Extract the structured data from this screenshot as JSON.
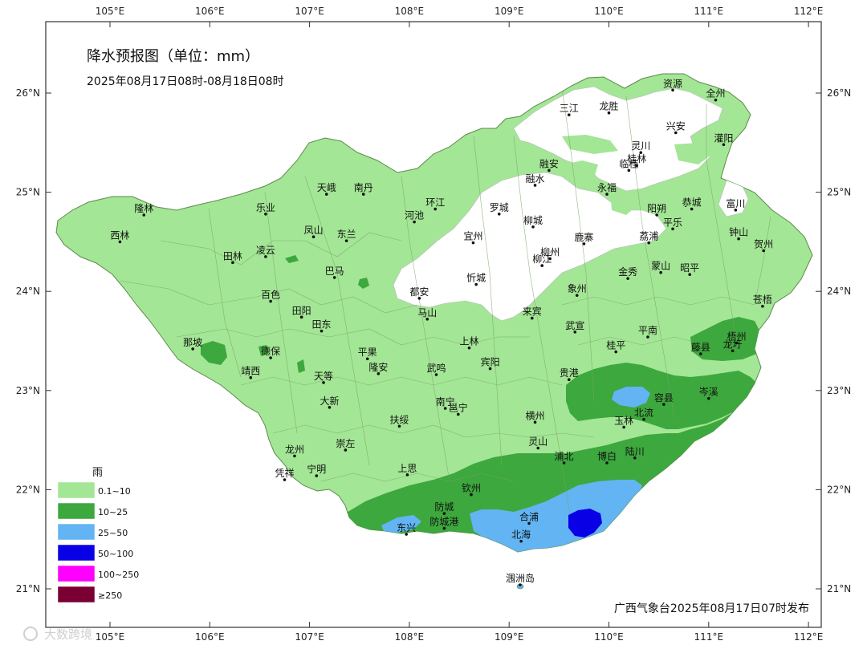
{
  "title": "降水预报图（单位：mm）",
  "subtitle": "2025年08月17日08时-08月18日08时",
  "publisher": "广西气象台2025年08月17日07时发布",
  "watermark": "大数跨境",
  "axes": {
    "top": [
      "105°E",
      "106°E",
      "107°E",
      "108°E",
      "109°E",
      "110°E",
      "111°E",
      "112°E"
    ],
    "bottom": [
      "105°E",
      "106°E",
      "107°E",
      "108°E",
      "109°E",
      "110°E",
      "111°E",
      "112°E"
    ],
    "left": [
      "26°N",
      "25°N",
      "24°N",
      "23°N",
      "22°N",
      "21°N"
    ],
    "right": [
      "26°N",
      "25°N",
      "24°N",
      "23°N",
      "22°N",
      "21°N"
    ]
  },
  "legend": {
    "title": "雨",
    "items": [
      {
        "label": "0.1~10",
        "color": "#a3e695"
      },
      {
        "label": "10~25",
        "color": "#3da83d"
      },
      {
        "label": "25~50",
        "color": "#62b4f3"
      },
      {
        "label": "50~100",
        "color": "#0a00e6"
      },
      {
        "label": "100~250",
        "color": "#ff00ff"
      },
      {
        "label": "≥250",
        "color": "#7a0033"
      }
    ]
  },
  "cities": [
    {
      "name": "资源",
      "lon": 110.64,
      "lat": 26.03
    },
    {
      "name": "全州",
      "lon": 111.07,
      "lat": 25.93
    },
    {
      "name": "三江",
      "lon": 109.6,
      "lat": 25.78
    },
    {
      "name": "龙胜",
      "lon": 110.0,
      "lat": 25.8
    },
    {
      "name": "兴安",
      "lon": 110.67,
      "lat": 25.6
    },
    {
      "name": "灌阳",
      "lon": 111.15,
      "lat": 25.48
    },
    {
      "name": "灵川",
      "lon": 110.32,
      "lat": 25.4
    },
    {
      "name": "桂林",
      "lon": 110.28,
      "lat": 25.27
    },
    {
      "name": "临桂",
      "lon": 110.2,
      "lat": 25.22
    },
    {
      "name": "融安",
      "lon": 109.4,
      "lat": 25.22
    },
    {
      "name": "融水",
      "lon": 109.26,
      "lat": 25.07
    },
    {
      "name": "永福",
      "lon": 109.98,
      "lat": 24.98
    },
    {
      "name": "天峨",
      "lon": 107.17,
      "lat": 24.98
    },
    {
      "name": "南丹",
      "lon": 107.54,
      "lat": 24.98
    },
    {
      "name": "恭城",
      "lon": 110.83,
      "lat": 24.83
    },
    {
      "name": "富川",
      "lon": 111.27,
      "lat": 24.82
    },
    {
      "name": "阳朔",
      "lon": 110.48,
      "lat": 24.77
    },
    {
      "name": "隆林",
      "lon": 105.34,
      "lat": 24.77
    },
    {
      "name": "乐业",
      "lon": 106.56,
      "lat": 24.78
    },
    {
      "name": "环江",
      "lon": 108.26,
      "lat": 24.83
    },
    {
      "name": "河池",
      "lon": 108.05,
      "lat": 24.7
    },
    {
      "name": "罗城",
      "lon": 108.9,
      "lat": 24.78
    },
    {
      "name": "平乐",
      "lon": 110.64,
      "lat": 24.63
    },
    {
      "name": "柳城",
      "lon": 109.24,
      "lat": 24.65
    },
    {
      "name": "钟山",
      "lon": 111.3,
      "lat": 24.53
    },
    {
      "name": "西林",
      "lon": 105.1,
      "lat": 24.5
    },
    {
      "name": "凤山",
      "lon": 107.04,
      "lat": 24.55
    },
    {
      "name": "东兰",
      "lon": 107.37,
      "lat": 24.51
    },
    {
      "name": "宜州",
      "lon": 108.64,
      "lat": 24.49
    },
    {
      "name": "鹿寨",
      "lon": 109.75,
      "lat": 24.48
    },
    {
      "name": "荔浦",
      "lon": 110.4,
      "lat": 24.49
    },
    {
      "name": "贺州",
      "lon": 111.55,
      "lat": 24.41
    },
    {
      "name": "柳州",
      "lon": 109.41,
      "lat": 24.33
    },
    {
      "name": "田林",
      "lon": 106.23,
      "lat": 24.29
    },
    {
      "name": "凌云",
      "lon": 106.56,
      "lat": 24.35
    },
    {
      "name": "柳江",
      "lon": 109.33,
      "lat": 24.26
    },
    {
      "name": "巴马",
      "lon": 107.25,
      "lat": 24.14
    },
    {
      "name": "金秀",
      "lon": 110.19,
      "lat": 24.13
    },
    {
      "name": "蒙山",
      "lon": 110.52,
      "lat": 24.19
    },
    {
      "name": "昭平",
      "lon": 110.81,
      "lat": 24.17
    },
    {
      "name": "忻城",
      "lon": 108.67,
      "lat": 24.07
    },
    {
      "name": "象州",
      "lon": 109.68,
      "lat": 23.96
    },
    {
      "name": "都安",
      "lon": 108.1,
      "lat": 23.93
    },
    {
      "name": "百色",
      "lon": 106.61,
      "lat": 23.9
    },
    {
      "name": "苍梧",
      "lon": 111.54,
      "lat": 23.85
    },
    {
      "name": "田阳",
      "lon": 106.92,
      "lat": 23.74
    },
    {
      "name": "马山",
      "lon": 108.18,
      "lat": 23.72
    },
    {
      "name": "来宾",
      "lon": 109.23,
      "lat": 23.73
    },
    {
      "name": "田东",
      "lon": 107.12,
      "lat": 23.6
    },
    {
      "name": "武宣",
      "lon": 109.66,
      "lat": 23.59
    },
    {
      "name": "平南",
      "lon": 110.39,
      "lat": 23.54
    },
    {
      "name": "梧州",
      "lon": 111.28,
      "lat": 23.48
    },
    {
      "name": "龙圩",
      "lon": 111.24,
      "lat": 23.4
    },
    {
      "name": "那坡",
      "lon": 105.83,
      "lat": 23.42
    },
    {
      "name": "上林",
      "lon": 108.6,
      "lat": 23.43
    },
    {
      "name": "桂平",
      "lon": 110.07,
      "lat": 23.39
    },
    {
      "name": "藤县",
      "lon": 110.92,
      "lat": 23.37
    },
    {
      "name": "德保",
      "lon": 106.61,
      "lat": 23.33
    },
    {
      "name": "平果",
      "lon": 107.58,
      "lat": 23.32
    },
    {
      "name": "隆安",
      "lon": 107.69,
      "lat": 23.17
    },
    {
      "name": "宾阳",
      "lon": 108.81,
      "lat": 23.22
    },
    {
      "name": "武鸣",
      "lon": 108.27,
      "lat": 23.16
    },
    {
      "name": "靖西",
      "lon": 106.41,
      "lat": 23.13
    },
    {
      "name": "天等",
      "lon": 107.14,
      "lat": 23.08
    },
    {
      "name": "贵港",
      "lon": 109.6,
      "lat": 23.11
    },
    {
      "name": "岑溪",
      "lon": 111.0,
      "lat": 22.92
    },
    {
      "name": "大新",
      "lon": 107.2,
      "lat": 22.83
    },
    {
      "name": "容县",
      "lon": 110.55,
      "lat": 22.86
    },
    {
      "name": "南宁",
      "lon": 108.36,
      "lat": 22.82
    },
    {
      "name": "邕宁",
      "lon": 108.49,
      "lat": 22.76
    },
    {
      "name": "横州",
      "lon": 109.26,
      "lat": 22.68
    },
    {
      "name": "玉林",
      "lon": 110.15,
      "lat": 22.63
    },
    {
      "name": "北流",
      "lon": 110.35,
      "lat": 22.71
    },
    {
      "name": "扶绥",
      "lon": 107.9,
      "lat": 22.64
    },
    {
      "name": "崇左",
      "lon": 107.36,
      "lat": 22.4
    },
    {
      "name": "龙州",
      "lon": 106.85,
      "lat": 22.34
    },
    {
      "name": "灵山",
      "lon": 109.29,
      "lat": 22.42
    },
    {
      "name": "浦北",
      "lon": 109.55,
      "lat": 22.27
    },
    {
      "name": "博白",
      "lon": 109.98,
      "lat": 22.27
    },
    {
      "name": "陆川",
      "lon": 110.26,
      "lat": 22.32
    },
    {
      "name": "凭祥",
      "lon": 106.75,
      "lat": 22.1
    },
    {
      "name": "宁明",
      "lon": 107.07,
      "lat": 22.14
    },
    {
      "name": "上思",
      "lon": 107.98,
      "lat": 22.15
    },
    {
      "name": "钦州",
      "lon": 108.62,
      "lat": 21.95
    },
    {
      "name": "防城",
      "lon": 108.35,
      "lat": 21.76
    },
    {
      "name": "合浦",
      "lon": 109.2,
      "lat": 21.66
    },
    {
      "name": "东兴",
      "lon": 107.97,
      "lat": 21.55
    },
    {
      "name": "防城港",
      "lon": 108.35,
      "lat": 21.61
    },
    {
      "name": "北海",
      "lon": 109.12,
      "lat": 21.48
    },
    {
      "name": "涠洲岛",
      "lon": 109.11,
      "lat": 21.04
    }
  ]
}
